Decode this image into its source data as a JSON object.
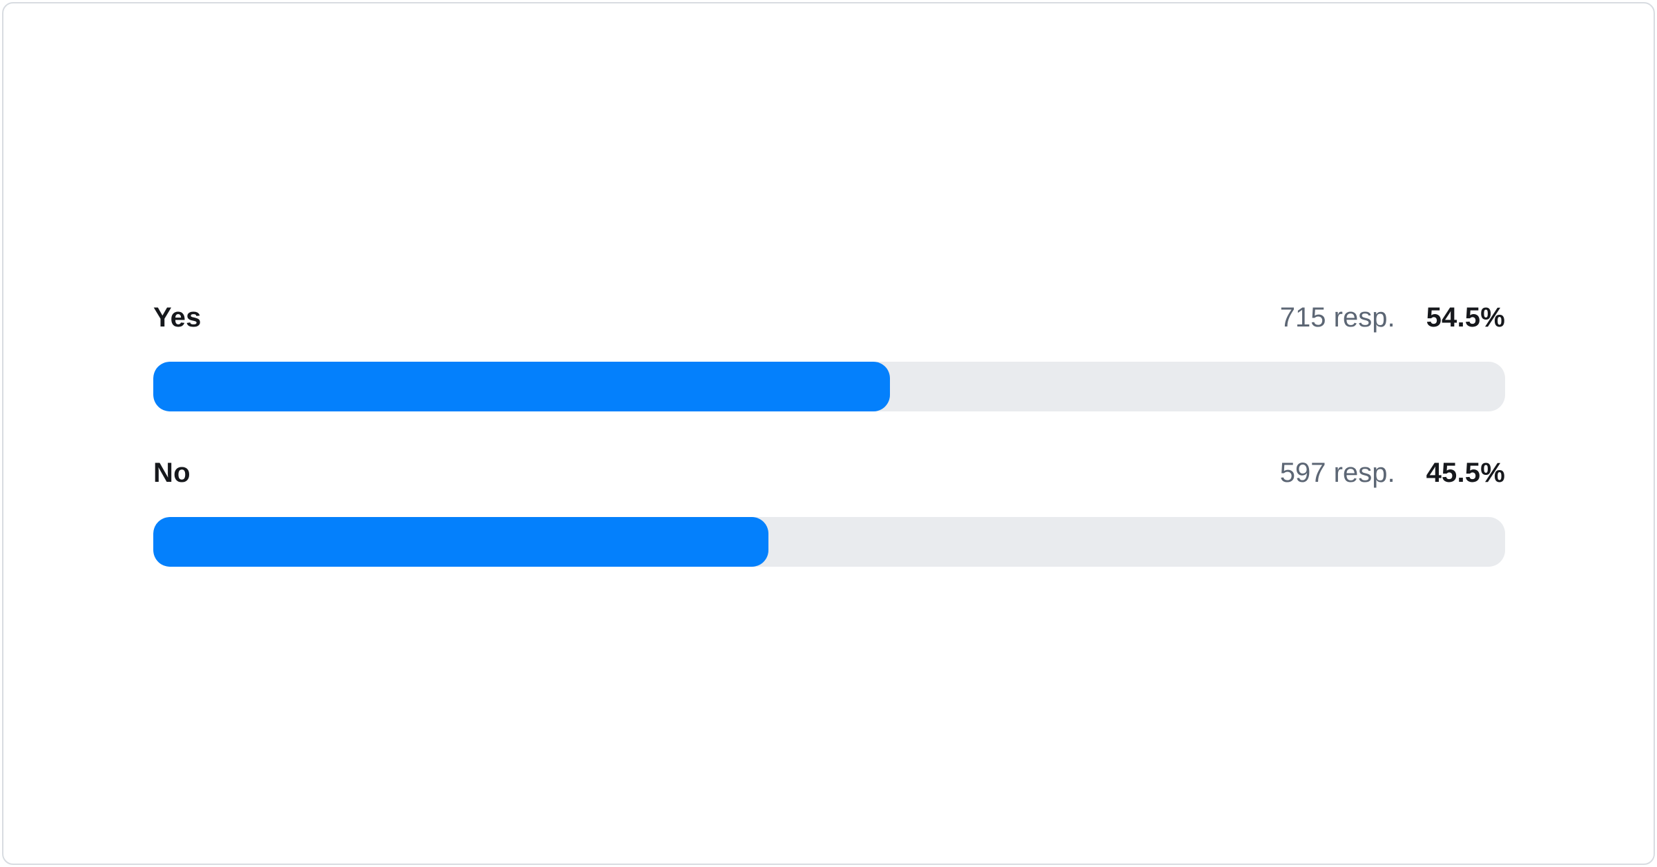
{
  "card": {
    "rows": [
      {
        "label": "Yes",
        "responses": "715 resp.",
        "percent": "54.5%"
      },
      {
        "label": "No",
        "responses": "597 resp.",
        "percent": "45.5%"
      }
    ]
  },
  "colors": {
    "bar_fill": "#0480fc",
    "bar_track": "#e9ebee",
    "label_text": "#16181c",
    "resp_text": "#5c6674",
    "card_border": "#d8dce1",
    "card_bg": "#ffffff"
  },
  "chart_data": {
    "type": "bar",
    "orientation": "horizontal",
    "title": "",
    "xlabel": "",
    "ylabel": "",
    "categories": [
      "Yes",
      "No"
    ],
    "series": [
      {
        "name": "percent_of_responses",
        "values": [
          54.5,
          45.5
        ]
      },
      {
        "name": "response_count",
        "values": [
          715,
          597
        ]
      }
    ],
    "value_labels": [
      "54.5%",
      "45.5%"
    ],
    "response_labels": [
      "715 resp.",
      "597 resp."
    ],
    "xlim": [
      0,
      100
    ],
    "grid": false,
    "legend": false,
    "bar_color": "#0480fc",
    "track_color": "#e9ebee"
  }
}
